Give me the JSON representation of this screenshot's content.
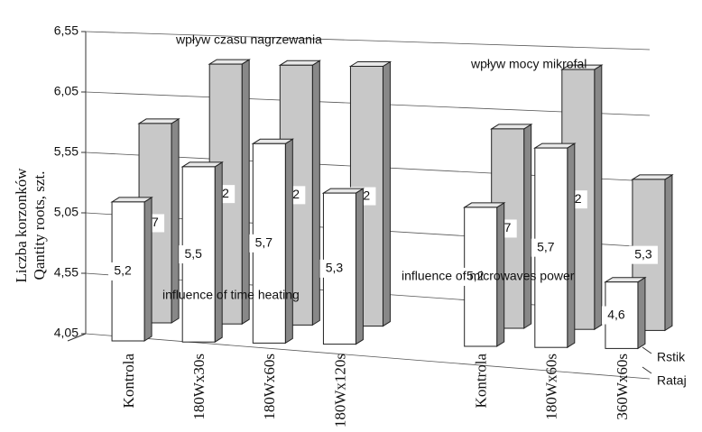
{
  "chart_data": {
    "type": "bar3d",
    "y_label": [
      "Liczba korzonków",
      "Qantity roots, szt."
    ],
    "annotations": [
      "wpływ czasu nagrzewania",
      "wpływ mocy mikrofal",
      "influence of time heating",
      "influence of microwaves  power"
    ],
    "categories": [
      "Kontrola",
      "180Wx30s",
      "180Wx60s",
      "180Wx120s",
      null,
      "Kontrola",
      "180Wx60s",
      "360Wx60s"
    ],
    "series": [
      {
        "name": "Rstik",
        "color": "#c8c8c8",
        "values": [
          5.7,
          6.2,
          6.2,
          6.2,
          null,
          5.7,
          6.2,
          5.3
        ],
        "value_labels": [
          "5,7",
          "6,2",
          "6,2",
          "6,2",
          null,
          "5,7",
          "6,2",
          "5,3"
        ]
      },
      {
        "name": "Rataj",
        "color": "#ffffff",
        "values": [
          5.2,
          5.5,
          5.7,
          5.3,
          null,
          5.2,
          5.7,
          4.6
        ],
        "value_labels": [
          "5,2",
          "5,5",
          "5,7",
          "5,3",
          null,
          "5,2",
          "5,7",
          "4,6"
        ]
      }
    ],
    "ylim": [
      4.05,
      6.55
    ],
    "yticks": [
      {
        "value": 4.05,
        "label": "4,05"
      },
      {
        "value": 4.55,
        "label": "4,55"
      },
      {
        "value": 5.05,
        "label": "5,05"
      },
      {
        "value": 5.55,
        "label": "5,55"
      },
      {
        "value": 6.05,
        "label": "6,05"
      },
      {
        "value": 6.55,
        "label": "6,55"
      }
    ],
    "grid": true
  }
}
